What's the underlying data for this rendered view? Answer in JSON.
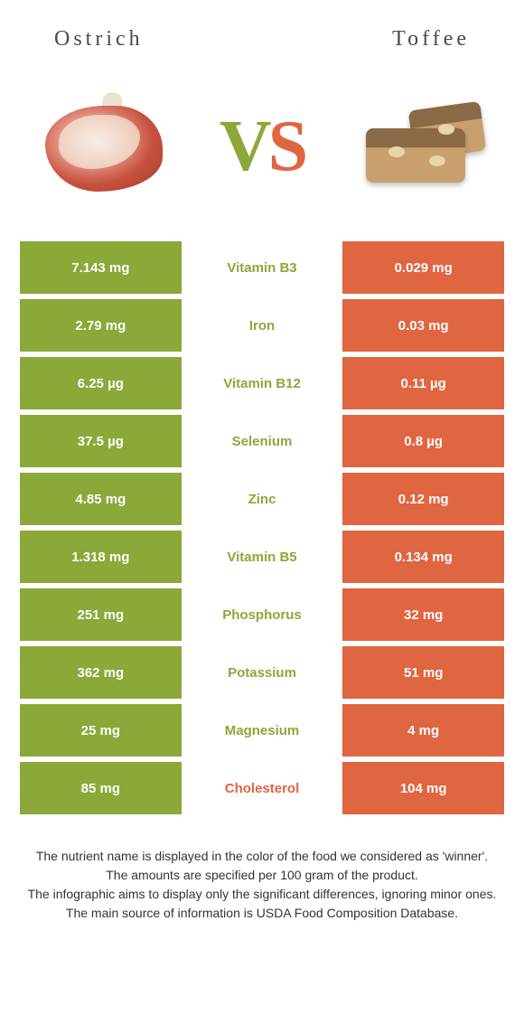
{
  "header": {
    "left": "Ostrich",
    "right": "Toffee"
  },
  "vs": {
    "v": "V",
    "s": "S"
  },
  "colors": {
    "green": "#8ba838",
    "orange": "#e06541",
    "mid_green_text": "#8ba838",
    "mid_orange_text": "#e06541"
  },
  "rows": [
    {
      "left": "7.143 mg",
      "mid": "Vitamin B3",
      "right": "0.029 mg",
      "winner": "left"
    },
    {
      "left": "2.79 mg",
      "mid": "Iron",
      "right": "0.03 mg",
      "winner": "left"
    },
    {
      "left": "6.25 µg",
      "mid": "Vitamin B12",
      "right": "0.11 µg",
      "winner": "left"
    },
    {
      "left": "37.5 µg",
      "mid": "Selenium",
      "right": "0.8 µg",
      "winner": "left"
    },
    {
      "left": "4.85 mg",
      "mid": "Zinc",
      "right": "0.12 mg",
      "winner": "left"
    },
    {
      "left": "1.318 mg",
      "mid": "Vitamin B5",
      "right": "0.134 mg",
      "winner": "left"
    },
    {
      "left": "251 mg",
      "mid": "Phosphorus",
      "right": "32 mg",
      "winner": "left"
    },
    {
      "left": "362 mg",
      "mid": "Potassium",
      "right": "51 mg",
      "winner": "left"
    },
    {
      "left": "25 mg",
      "mid": "Magnesium",
      "right": "4 mg",
      "winner": "left"
    },
    {
      "left": "85 mg",
      "mid": "Cholesterol",
      "right": "104 mg",
      "winner": "right"
    }
  ],
  "footer": {
    "line1": "The nutrient name is displayed in the color of the food we considered as 'winner'.",
    "line2": "The amounts are specified per 100 gram of the product.",
    "line3": "The infographic aims to display only the significant differences, ignoring minor ones.",
    "line4": "The main source of information is USDA Food Composition Database."
  }
}
